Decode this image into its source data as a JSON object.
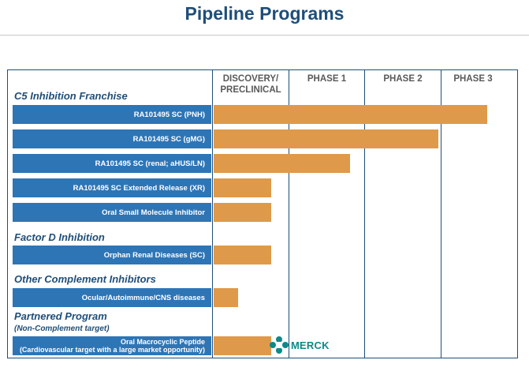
{
  "title": "Pipeline Programs",
  "phases": [
    "DISCOVERY/\nPRECLINICAL",
    "PHASE 1",
    "PHASE 2",
    "PHASE 3"
  ],
  "sections": {
    "c5": "C5 Inhibition Franchise",
    "factor_d": "Factor D Inhibition",
    "other": "Other Complement Inhibitors",
    "partnered": "Partnered Program",
    "partnered_sub": "(Non-Complement target)"
  },
  "programs": [
    {
      "label": "RA101495 SC  (PNH)",
      "progress": 0.9
    },
    {
      "label": "RA101495 SC  (gMG)",
      "progress": 0.74
    },
    {
      "label": "RA101495 SC  (renal; aHUS/LN)",
      "progress": 0.45
    },
    {
      "label": "RA101495 SC Extended Release (XR)",
      "progress": 0.19
    },
    {
      "label": "Oral Small Molecule Inhibitor",
      "progress": 0.19
    },
    {
      "label": "Orphan Renal Diseases (SC)",
      "progress": 0.19
    },
    {
      "label": "Ocular/Autoimmune/CNS diseases",
      "progress": 0.08
    },
    {
      "label": "Oral Macrocyclic Peptide\n(Cardiovascular target with a large market opportunity)",
      "progress": 0.19
    }
  ],
  "partner": {
    "name": "MERCK",
    "icon": "merck-logo-icon",
    "color": "#0c8a8a"
  },
  "chart_data": {
    "type": "bar",
    "orientation": "horizontal",
    "title": "Pipeline Programs",
    "categories": [
      "RA101495 SC  (PNH)",
      "RA101495 SC  (gMG)",
      "RA101495 SC  (renal; aHUS/LN)",
      "RA101495 SC Extended Release (XR)",
      "Oral Small Molecule Inhibitor",
      "Orphan Renal Diseases (SC)",
      "Ocular/Autoimmune/CNS diseases",
      "Oral Macrocyclic Peptide (Cardiovascular target with a large market opportunity)"
    ],
    "x_stages": [
      "DISCOVERY/PRECLINICAL",
      "PHASE 1",
      "PHASE 2",
      "PHASE 3"
    ],
    "values": [
      3.6,
      2.95,
      1.8,
      0.75,
      0.75,
      0.75,
      0.3,
      0.75
    ],
    "xlim": [
      0,
      4
    ],
    "colors": {
      "bar": "#de9a4a",
      "label": "#2e75b6",
      "header": "#1f4e79"
    }
  }
}
